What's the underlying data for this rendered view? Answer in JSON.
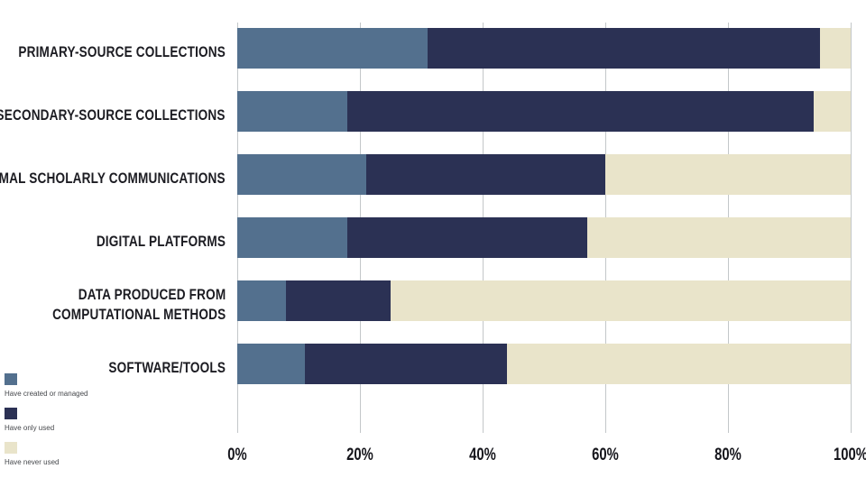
{
  "chart_data": {
    "type": "bar",
    "orientation": "horizontal",
    "stacked": true,
    "title": "",
    "xlabel": "",
    "ylabel": "",
    "xlim": [
      0,
      100
    ],
    "grid": true,
    "x_ticks": [
      "0%",
      "20%",
      "40%",
      "60%",
      "80%",
      "100%"
    ],
    "categories": [
      [
        "PRIMARY-SOURCE COLLECTIONS"
      ],
      [
        "SECONDARY-SOURCE COLLECTIONS"
      ],
      [
        "INFORMAL SCHOLARLY COMMUNICATIONS"
      ],
      [
        "DIGITAL PLATFORMS"
      ],
      [
        "DATA PRODUCED FROM",
        "COMPUTATIONAL METHODS"
      ],
      [
        "SOFTWARE/TOOLS"
      ]
    ],
    "series": [
      {
        "name": "Have created or managed",
        "color": "#53708e",
        "values": [
          31,
          18,
          21,
          18,
          8,
          11
        ]
      },
      {
        "name": "Have only used",
        "color": "#2b3154",
        "values": [
          64,
          76,
          39,
          39,
          17,
          33
        ]
      },
      {
        "name": "Have never used",
        "color": "#e9e4ca",
        "values": [
          5,
          6,
          40,
          43,
          75,
          56
        ]
      }
    ],
    "legend_position": "bottom-left"
  },
  "colors": {
    "background": "#ffffff",
    "gridline": "#c3c7c9",
    "category_text": "#1c1c22",
    "tick_text": "#16161c",
    "legend_text": "#46484c"
  },
  "layout_values": {
    "tick_percents": [
      0,
      20,
      40,
      60,
      80,
      100
    ]
  }
}
